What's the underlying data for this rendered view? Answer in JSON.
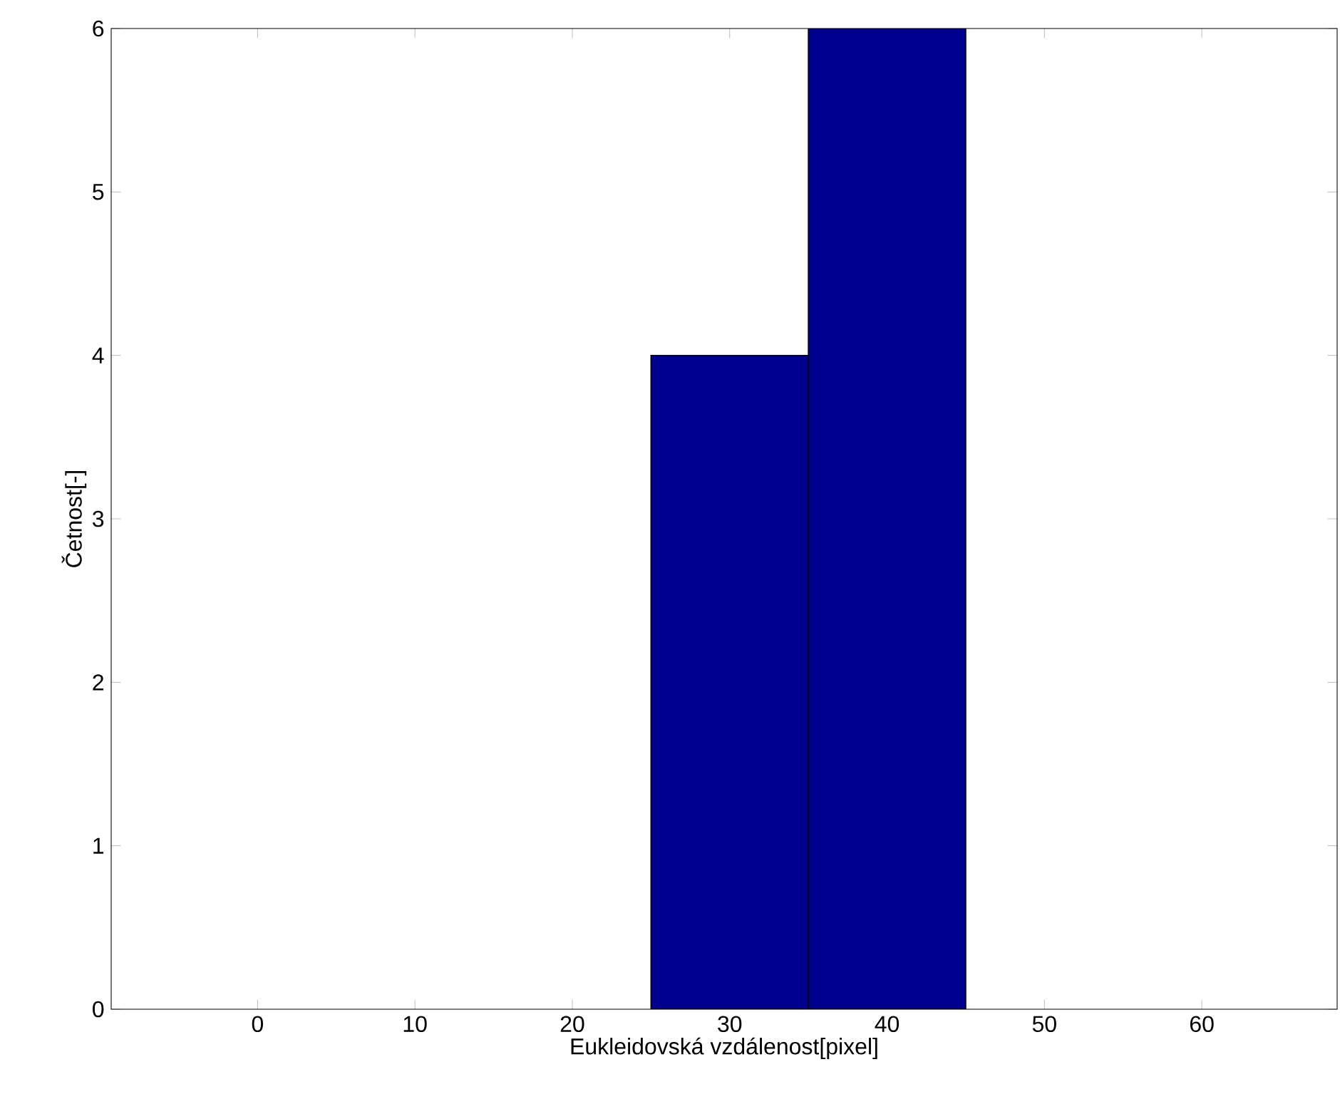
{
  "chart_data": {
    "type": "histogram",
    "xlabel": "Eukleidovská vzdálenost[pixel]",
    "ylabel": "Četnost[-]",
    "bins": [
      25,
      35,
      45
    ],
    "values": [
      4,
      6
    ],
    "color": "#00008f",
    "xlim": [
      -9.3,
      68.6
    ],
    "ylim": [
      0,
      6
    ],
    "xticks": [
      0,
      10,
      20,
      30,
      40,
      50,
      60
    ],
    "yticks": [
      0,
      1,
      2,
      3,
      4,
      5,
      6
    ],
    "grid": false
  }
}
